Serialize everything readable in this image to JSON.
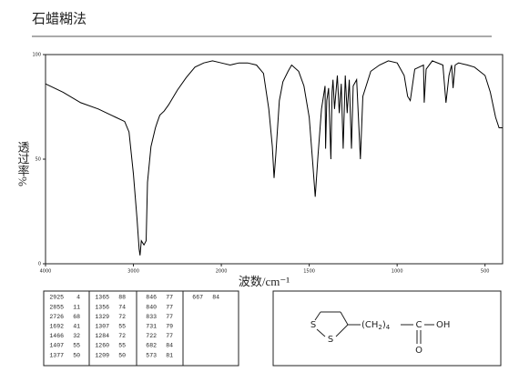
{
  "header": {
    "title": "石蜡糊法"
  },
  "chart_data": {
    "type": "line",
    "x_label": "波数/cm⁻¹",
    "y_label": "透过率%",
    "xlim": [
      4000,
      400
    ],
    "xticks": [
      4000,
      3000,
      2000,
      1500,
      1000,
      500
    ],
    "ylim": [
      0,
      100
    ],
    "yticks": [
      0,
      50,
      100
    ],
    "series": [
      {
        "color": "#000000",
        "x": [
          4000,
          3800,
          3600,
          3400,
          3300,
          3200,
          3100,
          3050,
          3000,
          2960,
          2935,
          2925,
          2910,
          2880,
          2855,
          2840,
          2800,
          2750,
          2726,
          2700,
          2650,
          2600,
          2500,
          2400,
          2300,
          2200,
          2100,
          2000,
          1950,
          1900,
          1850,
          1800,
          1760,
          1730,
          1710,
          1700,
          1690,
          1670,
          1650,
          1620,
          1600,
          1560,
          1530,
          1500,
          1480,
          1466,
          1450,
          1430,
          1410,
          1407,
          1400,
          1390,
          1377,
          1370,
          1365,
          1356,
          1340,
          1329,
          1318,
          1307,
          1295,
          1284,
          1272,
          1260,
          1250,
          1230,
          1209,
          1195,
          1150,
          1100,
          1050,
          1000,
          960,
          940,
          925,
          900,
          850,
          846,
          835,
          800,
          740,
          722,
          705,
          690,
          682,
          670,
          650,
          600,
          560,
          500,
          470,
          440,
          420,
          400
        ],
        "values": [
          86,
          82,
          77,
          74,
          72,
          70,
          68,
          63,
          43,
          22,
          7,
          4,
          11,
          9,
          11,
          39,
          56,
          65,
          68,
          71,
          73,
          76,
          83,
          89,
          94,
          96,
          97,
          96,
          95,
          96,
          96,
          95,
          91,
          74,
          56,
          41,
          52,
          78,
          87,
          92,
          95,
          92,
          85,
          70,
          48,
          32,
          52,
          74,
          85,
          55,
          78,
          84,
          50,
          82,
          88,
          74,
          90,
          72,
          86,
          55,
          90,
          72,
          88,
          55,
          85,
          88,
          50,
          80,
          92,
          95,
          97,
          96,
          90,
          80,
          78,
          93,
          95,
          77,
          93,
          97,
          95,
          77,
          90,
          95,
          84,
          95,
          96,
          95,
          94,
          90,
          82,
          70,
          65,
          65
        ]
      }
    ]
  },
  "peak_table": [
    [
      [
        2925,
        4
      ],
      [
        2855,
        11
      ],
      [
        2726,
        68
      ],
      [
        1692,
        41
      ],
      [
        1466,
        32
      ],
      [
        1407,
        55
      ],
      [
        1377,
        50
      ]
    ],
    [
      [
        1365,
        88
      ],
      [
        1356,
        74
      ],
      [
        1329,
        72
      ],
      [
        1307,
        55
      ],
      [
        1284,
        72
      ],
      [
        1260,
        55
      ],
      [
        1209,
        50
      ]
    ],
    [
      [
        846,
        77
      ],
      [
        840,
        77
      ],
      [
        833,
        77
      ],
      [
        731,
        79
      ],
      [
        722,
        77
      ],
      [
        682,
        84
      ],
      [
        573,
        81
      ]
    ],
    [
      [
        667,
        84
      ]
    ]
  ],
  "structure": {
    "s_top": "S",
    "s_bottom": "S",
    "chain_open": "(CH",
    "sub_2": "2",
    "chain_close": ")",
    "sub_4": "4",
    "carbon": "C",
    "hydroxyl": "OH",
    "oxygen": "O"
  }
}
